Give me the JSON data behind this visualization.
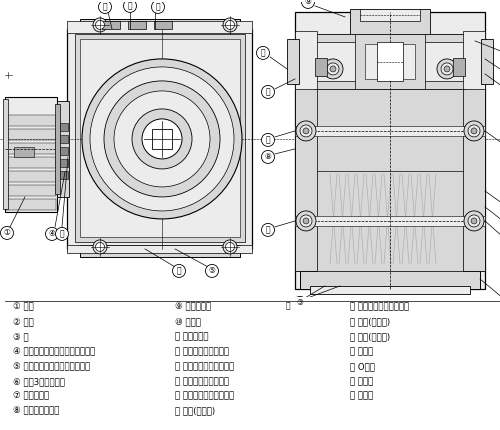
{
  "bg_color": "#ffffff",
  "fig_width": 5.0,
  "fig_height": 4.3,
  "dpi": 100,
  "line_color": "#000000",
  "gray_light": "#d8d8d8",
  "gray_mid": "#b0b0b0",
  "gray_dark": "#888888",
  "gray_very_light": "#ececec",
  "white": "#ffffff",
  "legend_cols": [
    [
      "① 电机",
      "② 笱体",
      "③ 盖",
      "④ 电机小齿轮（准双曲面小齿轮）",
      "⑤ 第一段齿轮（准双曲面齿轮）",
      "⑥ 带第3轴的小齿轮",
      "⑦ 第二段齿轮",
      "⑧ 第三轴带小齿轮"
    ],
    [
      "⑨ 第三段齿轮",
      "⑩ 输出轴",
      "⑪ 空心轴输出",
      "⑫ 轴承（第二轴盖端）",
      "⑬ 轴承（第二轴笱体端）",
      "⑭ 轴承（第三轴盖端）",
      "⑮ 轴承（第三轴笱体端）",
      "⑯ 轴承(输出轴)"
    ],
    [
      "⑰ 轴承（电机轴负载端）",
      "⑱ 油封(输出端)",
      "⑲ 油封(电机轴)",
      "⑳ 密封盖",
      "⑬ O形环",
      "⑶ 过滤器",
      "⑷ 密封件"
    ]
  ],
  "callout_circle_color": "#ffffff",
  "callout_circle_edge": "#000000"
}
